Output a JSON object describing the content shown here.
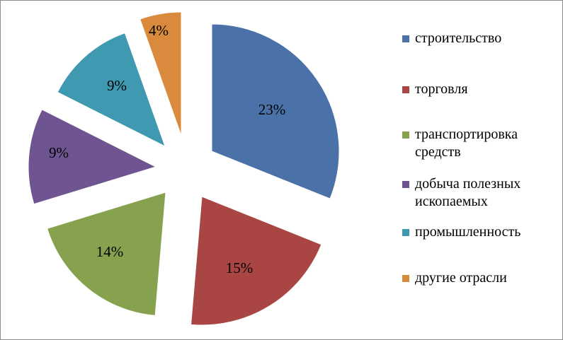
{
  "chart_data": {
    "type": "pie",
    "title": "",
    "exploded": true,
    "legend_position": "right",
    "slices": [
      {
        "label": "строительство",
        "value": 23,
        "display": "23%",
        "color": "#4a72a8"
      },
      {
        "label": "торговля",
        "value": 15,
        "display": "15%",
        "color": "#a94643"
      },
      {
        "label": "транспортировка средств",
        "value": 14,
        "display": "14%",
        "color": "#87a24f"
      },
      {
        "label": "добыча полезных ископаемых",
        "value": 9,
        "display": "9%",
        "color": "#6e5591"
      },
      {
        "label": "промышленность",
        "value": 9,
        "display": "9%",
        "color": "#3f99b0"
      },
      {
        "label": "другие отрасли",
        "value": 4,
        "display": "4%",
        "color": "#d98a3d"
      }
    ]
  }
}
